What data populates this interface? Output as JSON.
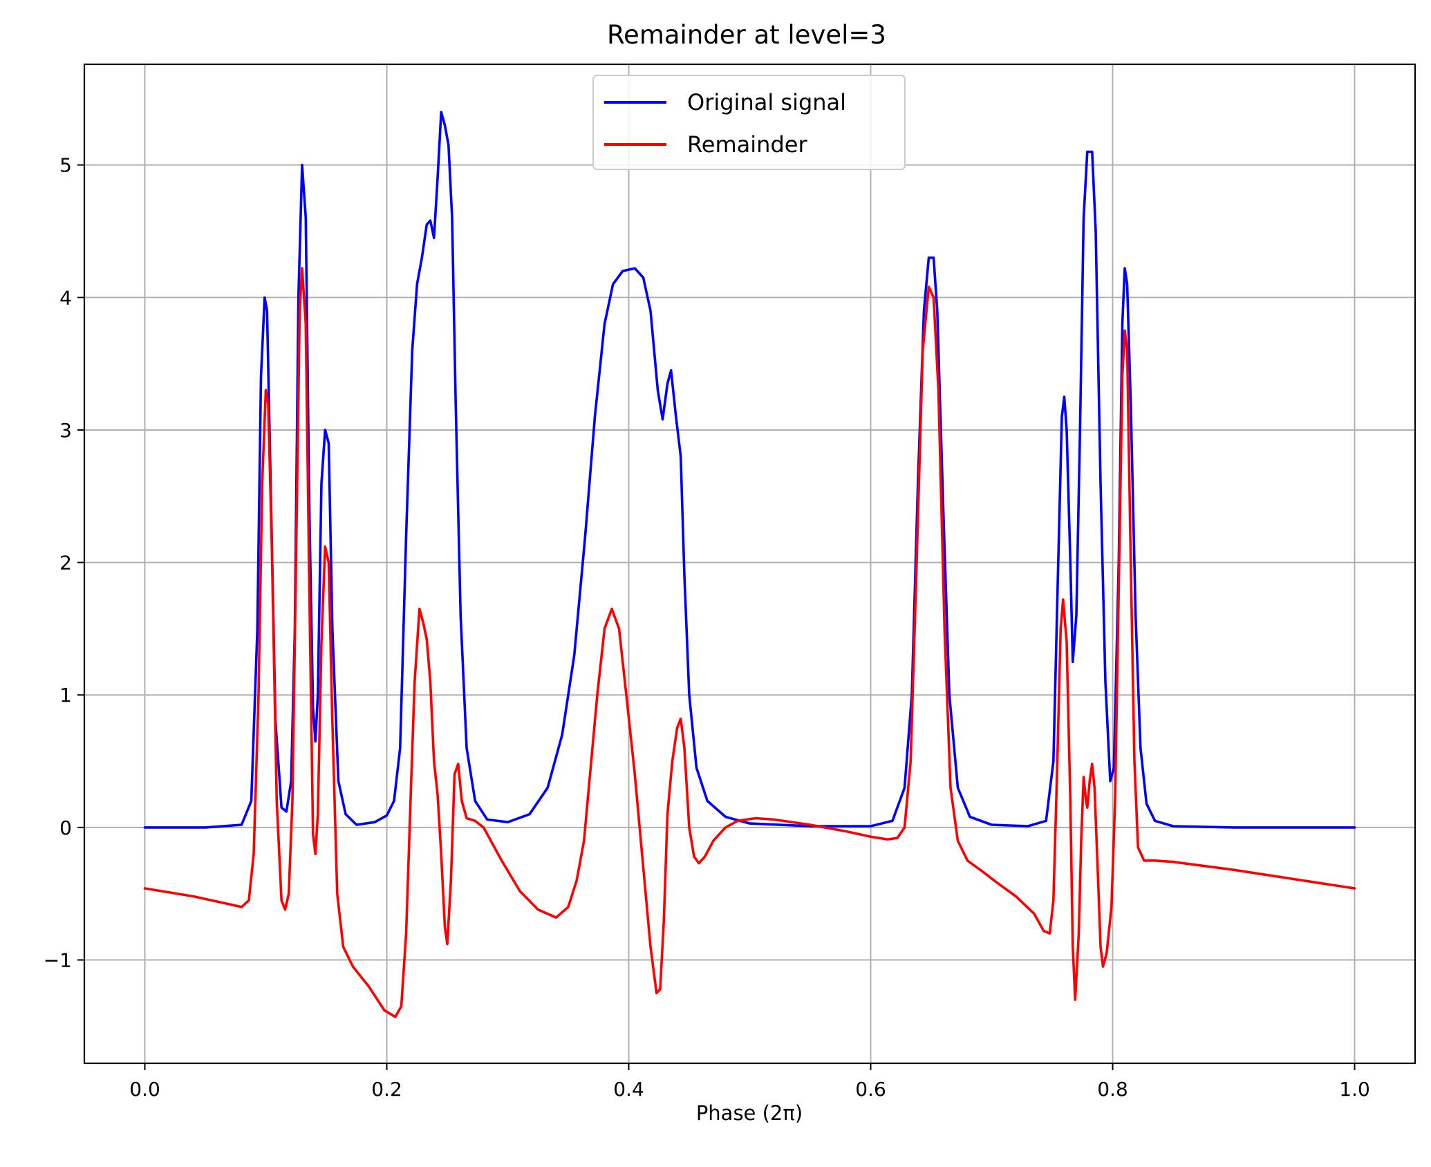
{
  "chart_data": {
    "type": "line",
    "title": "Remainder at level=3",
    "xlabel": "Phase (2π)",
    "ylabel": "",
    "xlim": [
      -0.05,
      1.05
    ],
    "ylim": [
      -1.78,
      5.76
    ],
    "xticks": [
      0.0,
      0.2,
      0.4,
      0.6,
      0.8,
      1.0
    ],
    "xtick_labels": [
      "0.0",
      "0.2",
      "0.4",
      "0.6",
      "0.8",
      "1.0"
    ],
    "yticks": [
      -1,
      0,
      1,
      2,
      3,
      4,
      5
    ],
    "ytick_labels": [
      "−1",
      "0",
      "1",
      "2",
      "3",
      "4",
      "5"
    ],
    "grid": true,
    "legend_position": "upper-center",
    "series": [
      {
        "name": "Original signal",
        "color": "#0000ff",
        "points": [
          [
            0.0,
            0.0
          ],
          [
            0.05,
            0.0
          ],
          [
            0.08,
            0.02
          ],
          [
            0.088,
            0.2
          ],
          [
            0.093,
            1.5
          ],
          [
            0.096,
            3.4
          ],
          [
            0.099,
            4.0
          ],
          [
            0.101,
            3.9
          ],
          [
            0.104,
            2.6
          ],
          [
            0.108,
            0.8
          ],
          [
            0.113,
            0.15
          ],
          [
            0.117,
            0.12
          ],
          [
            0.121,
            0.35
          ],
          [
            0.124,
            1.5
          ],
          [
            0.127,
            4.0
          ],
          [
            0.13,
            5.0
          ],
          [
            0.133,
            4.6
          ],
          [
            0.136,
            2.4
          ],
          [
            0.139,
            0.9
          ],
          [
            0.141,
            0.65
          ],
          [
            0.143,
            1.0
          ],
          [
            0.146,
            2.6
          ],
          [
            0.149,
            3.0
          ],
          [
            0.152,
            2.9
          ],
          [
            0.155,
            1.5
          ],
          [
            0.16,
            0.35
          ],
          [
            0.166,
            0.1
          ],
          [
            0.175,
            0.02
          ],
          [
            0.19,
            0.04
          ],
          [
            0.2,
            0.09
          ],
          [
            0.206,
            0.2
          ],
          [
            0.211,
            0.6
          ],
          [
            0.216,
            2.2
          ],
          [
            0.221,
            3.6
          ],
          [
            0.225,
            4.1
          ],
          [
            0.229,
            4.3
          ],
          [
            0.233,
            4.55
          ],
          [
            0.236,
            4.58
          ],
          [
            0.239,
            4.45
          ],
          [
            0.242,
            4.9
          ],
          [
            0.245,
            5.4
          ],
          [
            0.248,
            5.3
          ],
          [
            0.251,
            5.15
          ],
          [
            0.254,
            4.6
          ],
          [
            0.257,
            3.2
          ],
          [
            0.261,
            1.6
          ],
          [
            0.266,
            0.6
          ],
          [
            0.273,
            0.2
          ],
          [
            0.283,
            0.06
          ],
          [
            0.3,
            0.04
          ],
          [
            0.318,
            0.1
          ],
          [
            0.333,
            0.3
          ],
          [
            0.345,
            0.7
          ],
          [
            0.355,
            1.3
          ],
          [
            0.364,
            2.2
          ],
          [
            0.372,
            3.1
          ],
          [
            0.38,
            3.8
          ],
          [
            0.387,
            4.1
          ],
          [
            0.395,
            4.2
          ],
          [
            0.405,
            4.22
          ],
          [
            0.412,
            4.15
          ],
          [
            0.418,
            3.9
          ],
          [
            0.424,
            3.3
          ],
          [
            0.428,
            3.08
          ],
          [
            0.432,
            3.35
          ],
          [
            0.435,
            3.45
          ],
          [
            0.439,
            3.1
          ],
          [
            0.443,
            2.8
          ],
          [
            0.446,
            1.9
          ],
          [
            0.45,
            1.0
          ],
          [
            0.456,
            0.45
          ],
          [
            0.465,
            0.2
          ],
          [
            0.48,
            0.08
          ],
          [
            0.5,
            0.03
          ],
          [
            0.55,
            0.01
          ],
          [
            0.6,
            0.01
          ],
          [
            0.618,
            0.05
          ],
          [
            0.628,
            0.3
          ],
          [
            0.634,
            1.0
          ],
          [
            0.639,
            2.6
          ],
          [
            0.644,
            3.9
          ],
          [
            0.648,
            4.3
          ],
          [
            0.652,
            4.3
          ],
          [
            0.655,
            3.9
          ],
          [
            0.66,
            2.4
          ],
          [
            0.665,
            1.0
          ],
          [
            0.672,
            0.3
          ],
          [
            0.682,
            0.08
          ],
          [
            0.7,
            0.02
          ],
          [
            0.73,
            0.01
          ],
          [
            0.745,
            0.05
          ],
          [
            0.751,
            0.5
          ],
          [
            0.755,
            2.0
          ],
          [
            0.758,
            3.1
          ],
          [
            0.76,
            3.25
          ],
          [
            0.762,
            3.0
          ],
          [
            0.765,
            2.0
          ],
          [
            0.767,
            1.25
          ],
          [
            0.77,
            1.6
          ],
          [
            0.773,
            3.0
          ],
          [
            0.776,
            4.6
          ],
          [
            0.779,
            5.1
          ],
          [
            0.783,
            5.1
          ],
          [
            0.786,
            4.5
          ],
          [
            0.79,
            2.6
          ],
          [
            0.794,
            1.1
          ],
          [
            0.798,
            0.35
          ],
          [
            0.801,
            0.45
          ],
          [
            0.805,
            2.0
          ],
          [
            0.808,
            3.8
          ],
          [
            0.81,
            4.22
          ],
          [
            0.812,
            4.1
          ],
          [
            0.815,
            3.2
          ],
          [
            0.819,
            1.6
          ],
          [
            0.823,
            0.6
          ],
          [
            0.828,
            0.18
          ],
          [
            0.835,
            0.05
          ],
          [
            0.85,
            0.01
          ],
          [
            0.9,
            0.0
          ],
          [
            1.0,
            0.0
          ]
        ]
      },
      {
        "name": "Remainder",
        "color": "#ff0000",
        "points": [
          [
            0.0,
            -0.46
          ],
          [
            0.04,
            -0.52
          ],
          [
            0.07,
            -0.58
          ],
          [
            0.08,
            -0.6
          ],
          [
            0.086,
            -0.55
          ],
          [
            0.09,
            -0.2
          ],
          [
            0.094,
            1.0
          ],
          [
            0.097,
            2.6
          ],
          [
            0.1,
            3.3
          ],
          [
            0.102,
            3.2
          ],
          [
            0.105,
            2.1
          ],
          [
            0.109,
            0.2
          ],
          [
            0.113,
            -0.55
          ],
          [
            0.116,
            -0.62
          ],
          [
            0.119,
            -0.5
          ],
          [
            0.122,
            0.2
          ],
          [
            0.125,
            2.0
          ],
          [
            0.128,
            3.9
          ],
          [
            0.13,
            4.22
          ],
          [
            0.133,
            3.8
          ],
          [
            0.136,
            1.8
          ],
          [
            0.139,
            -0.05
          ],
          [
            0.141,
            -0.2
          ],
          [
            0.143,
            0.1
          ],
          [
            0.146,
            1.4
          ],
          [
            0.149,
            2.12
          ],
          [
            0.152,
            2.0
          ],
          [
            0.155,
            0.8
          ],
          [
            0.159,
            -0.5
          ],
          [
            0.164,
            -0.9
          ],
          [
            0.172,
            -1.05
          ],
          [
            0.185,
            -1.2
          ],
          [
            0.198,
            -1.38
          ],
          [
            0.207,
            -1.43
          ],
          [
            0.212,
            -1.35
          ],
          [
            0.216,
            -0.8
          ],
          [
            0.22,
            0.3
          ],
          [
            0.223,
            1.1
          ],
          [
            0.227,
            1.65
          ],
          [
            0.23,
            1.55
          ],
          [
            0.233,
            1.42
          ],
          [
            0.236,
            1.1
          ],
          [
            0.239,
            0.5
          ],
          [
            0.242,
            0.25
          ],
          [
            0.245,
            -0.2
          ],
          [
            0.248,
            -0.75
          ],
          [
            0.25,
            -0.88
          ],
          [
            0.253,
            -0.4
          ],
          [
            0.256,
            0.4
          ],
          [
            0.259,
            0.48
          ],
          [
            0.262,
            0.2
          ],
          [
            0.266,
            0.07
          ],
          [
            0.273,
            0.05
          ],
          [
            0.28,
            0.0
          ],
          [
            0.295,
            -0.25
          ],
          [
            0.31,
            -0.48
          ],
          [
            0.325,
            -0.62
          ],
          [
            0.34,
            -0.68
          ],
          [
            0.35,
            -0.6
          ],
          [
            0.357,
            -0.4
          ],
          [
            0.363,
            -0.1
          ],
          [
            0.368,
            0.4
          ],
          [
            0.374,
            1.0
          ],
          [
            0.38,
            1.5
          ],
          [
            0.386,
            1.65
          ],
          [
            0.392,
            1.5
          ],
          [
            0.398,
            1.0
          ],
          [
            0.405,
            0.4
          ],
          [
            0.412,
            -0.3
          ],
          [
            0.418,
            -0.9
          ],
          [
            0.423,
            -1.25
          ],
          [
            0.426,
            -1.22
          ],
          [
            0.429,
            -0.7
          ],
          [
            0.432,
            0.1
          ],
          [
            0.436,
            0.5
          ],
          [
            0.44,
            0.75
          ],
          [
            0.443,
            0.82
          ],
          [
            0.446,
            0.6
          ],
          [
            0.45,
            0.0
          ],
          [
            0.454,
            -0.22
          ],
          [
            0.458,
            -0.27
          ],
          [
            0.463,
            -0.22
          ],
          [
            0.47,
            -0.1
          ],
          [
            0.48,
            0.0
          ],
          [
            0.49,
            0.05
          ],
          [
            0.505,
            0.07
          ],
          [
            0.52,
            0.06
          ],
          [
            0.55,
            0.02
          ],
          [
            0.58,
            -0.03
          ],
          [
            0.6,
            -0.07
          ],
          [
            0.614,
            -0.09
          ],
          [
            0.622,
            -0.08
          ],
          [
            0.628,
            0.0
          ],
          [
            0.633,
            0.5
          ],
          [
            0.638,
            2.0
          ],
          [
            0.643,
            3.6
          ],
          [
            0.648,
            4.08
          ],
          [
            0.652,
            4.0
          ],
          [
            0.656,
            3.3
          ],
          [
            0.661,
            1.5
          ],
          [
            0.666,
            0.3
          ],
          [
            0.672,
            -0.1
          ],
          [
            0.68,
            -0.25
          ],
          [
            0.692,
            -0.33
          ],
          [
            0.705,
            -0.42
          ],
          [
            0.72,
            -0.52
          ],
          [
            0.735,
            -0.65
          ],
          [
            0.743,
            -0.78
          ],
          [
            0.748,
            -0.8
          ],
          [
            0.751,
            -0.55
          ],
          [
            0.754,
            0.4
          ],
          [
            0.757,
            1.5
          ],
          [
            0.759,
            1.72
          ],
          [
            0.762,
            1.4
          ],
          [
            0.765,
            0.2
          ],
          [
            0.767,
            -0.9
          ],
          [
            0.769,
            -1.3
          ],
          [
            0.772,
            -0.8
          ],
          [
            0.774,
            -0.1
          ],
          [
            0.776,
            0.38
          ],
          [
            0.778,
            0.2
          ],
          [
            0.779,
            0.15
          ],
          [
            0.781,
            0.35
          ],
          [
            0.783,
            0.48
          ],
          [
            0.785,
            0.3
          ],
          [
            0.788,
            -0.4
          ],
          [
            0.79,
            -0.9
          ],
          [
            0.792,
            -1.05
          ],
          [
            0.795,
            -0.95
          ],
          [
            0.799,
            -0.6
          ],
          [
            0.802,
            0.2
          ],
          [
            0.805,
            1.8
          ],
          [
            0.808,
            3.4
          ],
          [
            0.81,
            3.75
          ],
          [
            0.812,
            3.6
          ],
          [
            0.815,
            2.0
          ],
          [
            0.818,
            0.5
          ],
          [
            0.821,
            -0.15
          ],
          [
            0.826,
            -0.25
          ],
          [
            0.835,
            -0.25
          ],
          [
            0.85,
            -0.26
          ],
          [
            0.9,
            -0.32
          ],
          [
            0.95,
            -0.39
          ],
          [
            1.0,
            -0.46
          ]
        ]
      }
    ]
  }
}
